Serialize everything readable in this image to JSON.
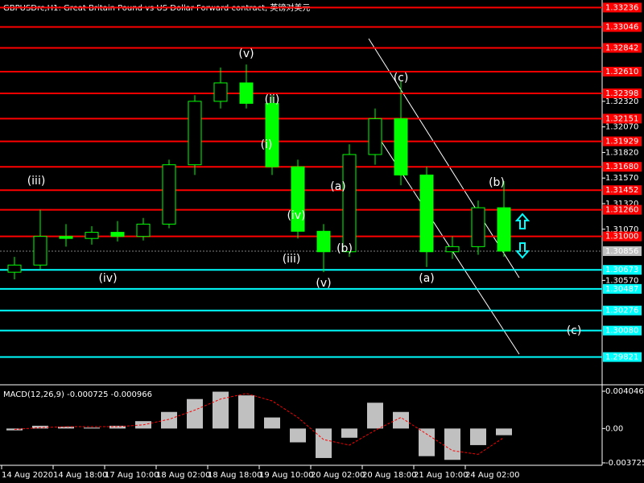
{
  "chart_data": [
    {
      "type": "candlestick",
      "title": "GBPUSDrc,H1:  Great Britain Pound vs US Dollar Forward contract, 英镑对美元",
      "categories": [
        "14 Aug 2020",
        null,
        "14 Aug 18:00",
        null,
        "17 Aug 10:00",
        null,
        "18 Aug 02:00",
        null,
        "18 Aug 18:00",
        null,
        "19 Aug 10:00",
        null,
        "20 Aug 02:00",
        null,
        "20 Aug 18:00",
        null,
        "21 Aug 10:00",
        null,
        "24 Aug 02:00",
        null
      ],
      "open": [
        1.3065,
        1.3072,
        1.31,
        1.3098,
        1.3104,
        1.31,
        1.3112,
        1.317,
        1.3232,
        1.325,
        1.323,
        1.3168,
        1.3105,
        1.3085,
        1.318,
        1.3215,
        1.316,
        1.3085,
        1.309,
        1.3128
      ],
      "high": [
        1.308,
        1.3126,
        1.3112,
        1.311,
        1.3115,
        1.3118,
        1.3175,
        1.3238,
        1.3265,
        1.3268,
        1.3238,
        1.3175,
        1.3112,
        1.319,
        1.3225,
        1.3252,
        1.3168,
        1.31,
        1.3135,
        1.3154
      ],
      "low": [
        1.3058,
        1.3068,
        1.309,
        1.3092,
        1.3095,
        1.3096,
        1.3108,
        1.316,
        1.3225,
        1.3225,
        1.316,
        1.3098,
        1.3065,
        1.308,
        1.317,
        1.315,
        1.307,
        1.3078,
        1.3082,
        1.308
      ],
      "close": [
        1.3072,
        1.31,
        1.3098,
        1.3104,
        1.31,
        1.3112,
        1.317,
        1.3232,
        1.325,
        1.323,
        1.3168,
        1.3105,
        1.3085,
        1.318,
        1.3215,
        1.316,
        1.3085,
        1.309,
        1.3128,
        1.30856
      ],
      "color": "#00ff00",
      "ylim": [
        1.2955,
        1.3331
      ],
      "yticks": [
        {
          "value": 1.3232,
          "label": "1.32320"
        },
        {
          "value": 1.3207,
          "label": "1.32070"
        },
        {
          "value": 1.3182,
          "label": "1.31820"
        },
        {
          "value": 1.3157,
          "label": "1.31570"
        },
        {
          "value": 1.3132,
          "label": "1.31320"
        },
        {
          "value": 1.3107,
          "label": "1.31070"
        },
        {
          "value": 1.3057,
          "label": "1.30570"
        }
      ],
      "resistance_color": "#ff0000",
      "resistance_levels": [
        1.33236,
        1.33046,
        1.32842,
        {
          "value": 1.3261,
          "label": "1.32610"
        },
        1.32398,
        1.32151,
        1.31929,
        {
          "value": 1.3168,
          "label": "1.31680"
        },
        1.31452,
        {
          "value": 1.3126,
          "label": "1.31260"
        },
        {
          "value": 1.31,
          "label": "1.31000"
        }
      ],
      "support_color": "#00ffff",
      "support_levels": [
        1.30673,
        1.30487,
        1.30276,
        {
          "value": 1.3008,
          "label": "1.30080"
        },
        1.29821
      ],
      "last_price": 1.30856,
      "impulse_color": "#ffffff",
      "impulse_labels": [
        "(v)",
        "(ii)",
        "(i)",
        "(iii)",
        "(iv)",
        "(iii)",
        "(iv)",
        "(v)"
      ],
      "correction_color": "#ffff00",
      "correction_labels": [
        "(a)",
        "(b)",
        "(c)",
        "(a)",
        "(b)",
        "(c)"
      ]
    },
    {
      "type": "macd",
      "title": "MACD(12,26,9) -0.000725 -0.000966",
      "histogram": [
        -0.0002,
        0.0003,
        0.0002,
        0.0001,
        0.0003,
        0.0008,
        0.0018,
        0.0032,
        0.004,
        0.0036,
        0.0012,
        -0.0015,
        -0.0032,
        -0.001,
        0.0028,
        0.0018,
        -0.003,
        -0.0034,
        -0.0018,
        -0.000725
      ],
      "signal": [
        -0.0001,
        0.0001,
        0.0002,
        0.0002,
        0.0002,
        0.0004,
        0.001,
        0.002,
        0.0032,
        0.0038,
        0.003,
        0.0012,
        -0.0012,
        -0.0018,
        -0.0002,
        0.0012,
        -0.0006,
        -0.0024,
        -0.0028,
        -0.000966
      ],
      "histogram_color": "#c0c0c0",
      "signal_color": "#ff0000",
      "ylim": [
        -0.00399,
        0.00466
      ],
      "yticks": [
        0.004046,
        {
          "value": 0,
          "label": "0.00"
        },
        -0.003725
      ]
    }
  ]
}
